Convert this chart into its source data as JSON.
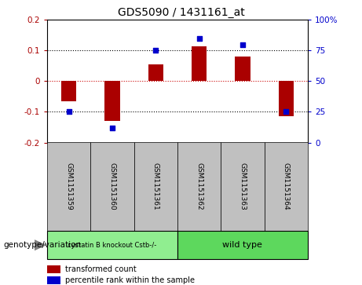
{
  "title": "GDS5090 / 1431161_at",
  "samples": [
    "GSM1151359",
    "GSM1151360",
    "GSM1151361",
    "GSM1151362",
    "GSM1151363",
    "GSM1151364"
  ],
  "red_values": [
    -0.065,
    -0.13,
    0.055,
    0.115,
    0.08,
    -0.115
  ],
  "blue_values": [
    25,
    12,
    75,
    85,
    80,
    25
  ],
  "group1_label": "cystatin B knockout Cstb-/-",
  "group2_label": "wild type",
  "group1_color": "#90EE90",
  "group2_color": "#5DD85D",
  "ylim_left": [
    -0.2,
    0.2
  ],
  "ylim_right": [
    0,
    100
  ],
  "yticks_left": [
    -0.2,
    -0.1,
    0.0,
    0.1,
    0.2
  ],
  "ytick_labels_left": [
    "-0.2",
    "-0.1",
    "0",
    "0.1",
    "0.2"
  ],
  "yticks_right": [
    0,
    25,
    50,
    75,
    100
  ],
  "ytick_labels_right": [
    "0",
    "25",
    "50",
    "75",
    "100%"
  ],
  "red_color": "#AA0000",
  "blue_color": "#0000CC",
  "bar_width": 0.35,
  "genotype_label": "genotype/variation",
  "legend_red": "transformed count",
  "legend_blue": "percentile rank within the sample",
  "sample_bg_color": "#C0C0C0",
  "zero_line_color": "#CC0000",
  "dotted_line_color": "#000000"
}
